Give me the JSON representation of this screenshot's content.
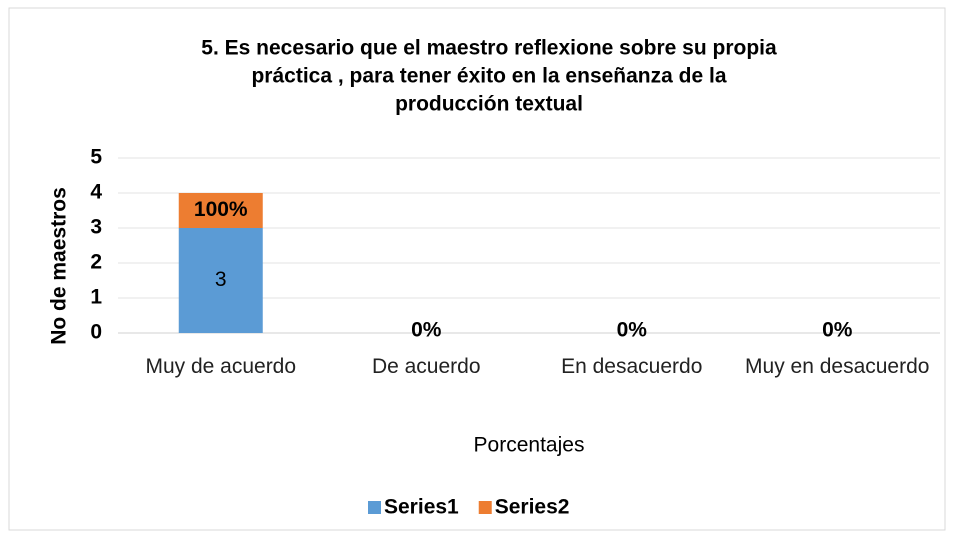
{
  "chart_data": {
    "type": "bar",
    "stacked": true,
    "title": [
      "5. Es necesario que el maestro reflexione  sobre su propia",
      "práctica , para tener éxito en la enseñanza de la",
      "producción textual"
    ],
    "x_label": "Porcentajes",
    "y_label": "No de maestros",
    "categories": [
      "Muy de acuerdo",
      "De acuerdo",
      "En desacuerdo",
      "Muy en desacuerdo"
    ],
    "series": [
      {
        "name": "Series1",
        "color": "#5b9bd5",
        "values": [
          3,
          0,
          0,
          0
        ],
        "value_labels": [
          "3",
          null,
          null,
          null
        ]
      },
      {
        "name": "Series2",
        "color": "#ed7d31",
        "values": [
          1,
          0,
          0,
          0
        ],
        "value_labels": [
          "100%",
          "0%",
          "0%",
          "0%"
        ]
      }
    ],
    "ylim": [
      0,
      5
    ],
    "yticks": [
      0,
      1,
      2,
      3,
      4,
      5
    ],
    "grid": true,
    "legend": "bottom"
  }
}
